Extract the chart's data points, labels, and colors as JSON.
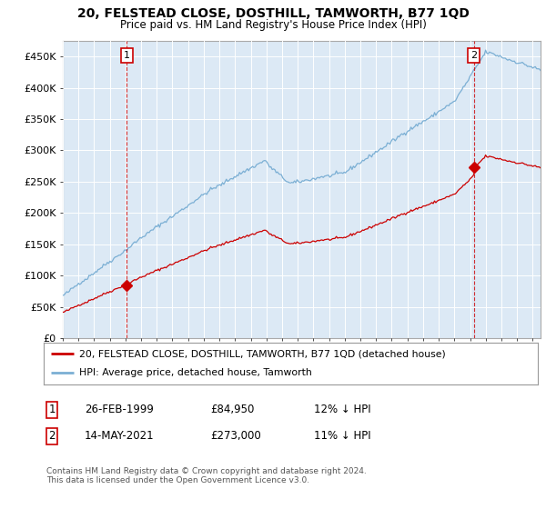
{
  "title": "20, FELSTEAD CLOSE, DOSTHILL, TAMWORTH, B77 1QD",
  "subtitle": "Price paid vs. HM Land Registry's House Price Index (HPI)",
  "legend_line1": "20, FELSTEAD CLOSE, DOSTHILL, TAMWORTH, B77 1QD (detached house)",
  "legend_line2": "HPI: Average price, detached house, Tamworth",
  "annotation1_date": "26-FEB-1999",
  "annotation1_price": "£84,950",
  "annotation1_hpi": "12% ↓ HPI",
  "annotation2_date": "14-MAY-2021",
  "annotation2_price": "£273,000",
  "annotation2_hpi": "11% ↓ HPI",
  "footnote": "Contains HM Land Registry data © Crown copyright and database right 2024.\nThis data is licensed under the Open Government Licence v3.0.",
  "hpi_color": "#7bafd4",
  "price_color": "#cc0000",
  "background_color": "#ffffff",
  "plot_bg_color": "#dce9f5",
  "grid_color": "#ffffff",
  "ylim": [
    0,
    475000
  ],
  "yticks": [
    0,
    50000,
    100000,
    150000,
    200000,
    250000,
    300000,
    350000,
    400000,
    450000
  ],
  "sale1_year_idx": 49,
  "sale1_value": 84950,
  "sale2_year_idx": 314,
  "sale2_value": 273000,
  "xstart": 1995.0,
  "xend": 2025.5
}
